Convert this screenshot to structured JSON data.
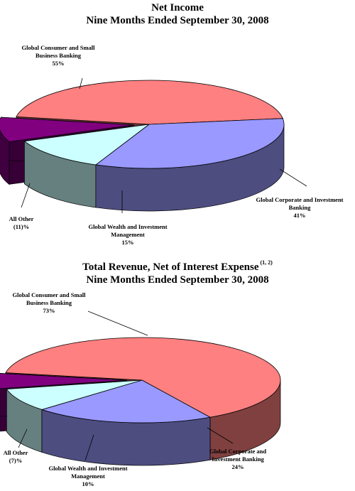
{
  "chart_data": [
    {
      "type": "pie",
      "title": "Net Income",
      "subtitle": "Nine Months Ended September 30, 2008",
      "slices": [
        {
          "name": "Global Consumer and Small Business Banking",
          "value": 55,
          "label": "55%",
          "color": "#FF8080"
        },
        {
          "name": "Global Corporate and Investment Banking",
          "value": 41,
          "label": "41%",
          "color": "#9999FF"
        },
        {
          "name": "Global Wealth and Investment Management",
          "value": 15,
          "label": "15%",
          "color": "#CCFFFF"
        },
        {
          "name": "All Other",
          "value": -11,
          "label": "(11)%",
          "color": "#800080"
        }
      ]
    },
    {
      "type": "pie",
      "title": "Total Revenue, Net of Interest Expense",
      "title_superscript": "(1, 2)",
      "subtitle": "Nine Months Ended September 30, 2008",
      "slices": [
        {
          "name": "Global Consumer and Small Business Banking",
          "value": 73,
          "label": "73%",
          "color": "#FF8080"
        },
        {
          "name": "Global Corporate and Investment Banking",
          "value": 24,
          "label": "24%",
          "color": "#9999FF"
        },
        {
          "name": "Global Wealth and Investment Management",
          "value": 10,
          "label": "10%",
          "color": "#CCFFFF"
        },
        {
          "name": "All Other",
          "value": -7,
          "label": "(7)%",
          "color": "#800080"
        }
      ]
    }
  ]
}
